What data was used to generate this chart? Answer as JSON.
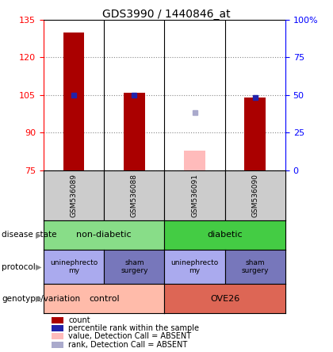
{
  "title": "GDS3990 / 1440846_at",
  "samples": [
    "GSM536089",
    "GSM536088",
    "GSM536091",
    "GSM536090"
  ],
  "ylim_left": [
    75,
    135
  ],
  "ylim_right": [
    0,
    100
  ],
  "yticks_left": [
    75,
    90,
    105,
    120,
    135
  ],
  "yticks_right": [
    0,
    25,
    50,
    75,
    100
  ],
  "bar_values": [
    130,
    106,
    null,
    104
  ],
  "bar_color": "#aa0000",
  "blue_marker_values": [
    105,
    105,
    null,
    104
  ],
  "blue_marker_color": "#2222aa",
  "absent_bar_value": 83,
  "absent_bar_bottom": 75,
  "absent_bar_col": 2,
  "absent_bar_color": "#ffbbbb",
  "absent_rank_value": 98,
  "absent_rank_col": 2,
  "absent_rank_color": "#aaaacc",
  "disease_state_groups": [
    {
      "label": "non-diabetic",
      "cols": [
        0,
        1
      ],
      "color": "#88dd88"
    },
    {
      "label": "diabetic",
      "cols": [
        2,
        3
      ],
      "color": "#44cc44"
    }
  ],
  "protocol_cells": [
    {
      "label": "uninephrecto\nmy",
      "col": 0,
      "color": "#aaaaee"
    },
    {
      "label": "sham\nsurgery",
      "col": 1,
      "color": "#7777bb"
    },
    {
      "label": "uninephrecto\nmy",
      "col": 2,
      "color": "#aaaaee"
    },
    {
      "label": "sham\nsurgery",
      "col": 3,
      "color": "#7777bb"
    }
  ],
  "genotype_groups": [
    {
      "label": "control",
      "cols": [
        0,
        1
      ],
      "color": "#ffbbaa"
    },
    {
      "label": "OVE26",
      "cols": [
        2,
        3
      ],
      "color": "#dd6655"
    }
  ],
  "legend_items": [
    {
      "color": "#aa0000",
      "label": "count"
    },
    {
      "color": "#2222aa",
      "label": "percentile rank within the sample"
    },
    {
      "color": "#ffbbbb",
      "label": "value, Detection Call = ABSENT"
    },
    {
      "color": "#aaaacc",
      "label": "rank, Detection Call = ABSENT"
    }
  ],
  "row_labels": [
    "disease state",
    "protocol",
    "genotype/variation"
  ],
  "bg": "#ffffff",
  "dotted_color": "#888888",
  "bar_width": 0.35
}
